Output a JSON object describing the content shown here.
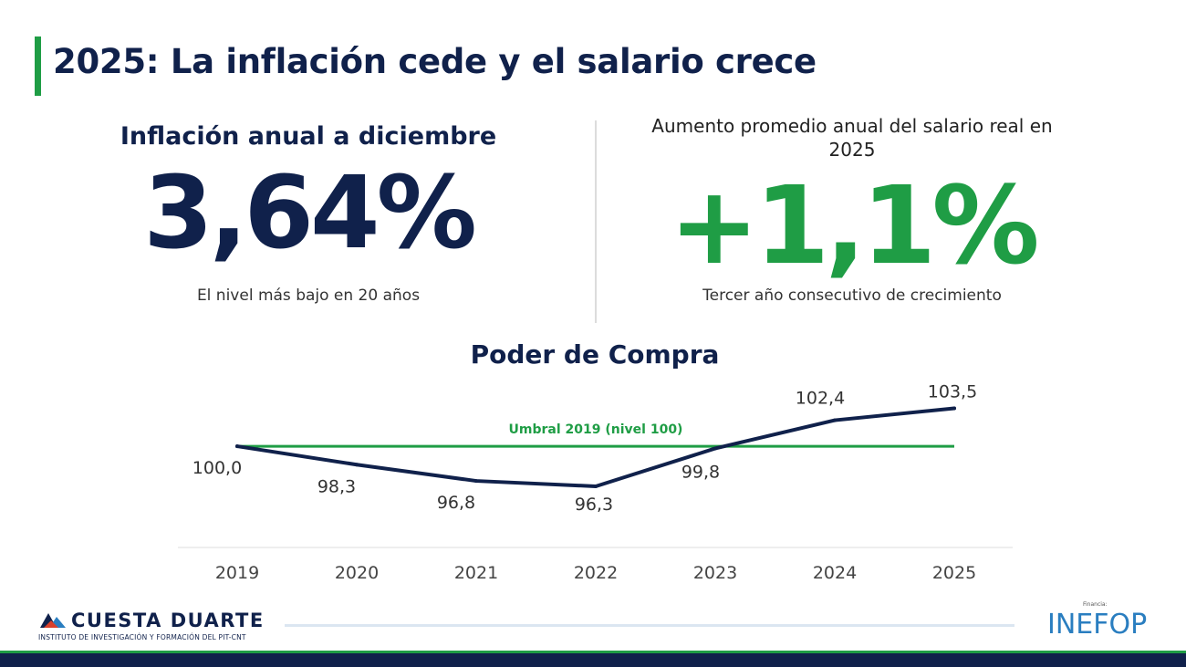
{
  "title": "2025: La inflación cede y el salario crece",
  "metric_left": {
    "title": "Inflación anual a diciembre",
    "value": "3,64%",
    "note": "El nivel más bajo en 20 años"
  },
  "metric_right": {
    "title": "Aumento promedio anual del salario real en 2025",
    "value": "+1,1%",
    "note": "Tercer año consecutivo de crecimiento"
  },
  "chart_data": {
    "type": "line",
    "title": "Poder de Compra",
    "x": [
      "2019",
      "2020",
      "2021",
      "2022",
      "2023",
      "2024",
      "2025"
    ],
    "series": [
      {
        "values": [
          100.0,
          98.3,
          96.8,
          96.3,
          99.8,
          102.4,
          103.5
        ]
      }
    ],
    "value_labels": [
      "100,0",
      "98,3",
      "96,8",
      "96,3",
      "99,8",
      "102,4",
      "103,5"
    ],
    "threshold": {
      "value": 100,
      "label": "Umbral 2019 (nivel 100)"
    },
    "ylim": [
      91.5,
      107.5
    ],
    "grid": false,
    "colors": {
      "line": "#10214b",
      "threshold": "#1f9d45",
      "baseline": "#dddddd"
    }
  },
  "footer": {
    "logo_left_name": "CUESTA DUARTE",
    "logo_left_sub": "INSTITUTO DE INVESTIGACIÓN Y FORMACIÓN DEL PIT-CNT",
    "logo_right_label": "Financia:",
    "logo_right_name": "INEFOP"
  },
  "colors": {
    "navy": "#10214b",
    "green": "#1f9d45",
    "blue": "#2a7ec0"
  }
}
